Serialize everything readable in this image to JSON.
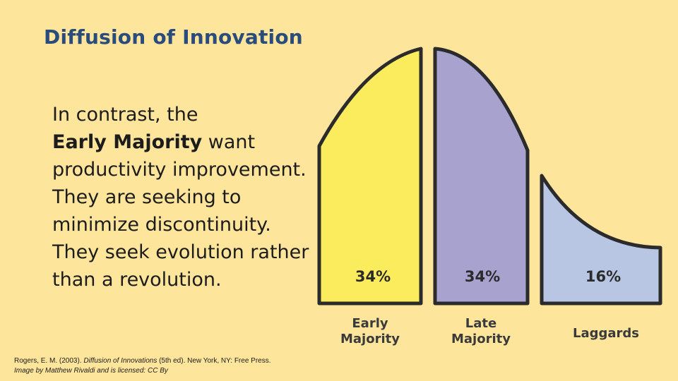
{
  "slide": {
    "title": "Diffusion of Innovation",
    "body": {
      "line1": "In contrast, the",
      "bold": "Early Majority",
      "line2_rest": " want",
      "line3": "productivity improvement.",
      "line4": "They are seeking to",
      "line5": "minimize discontinuity.",
      "line6": "They seek evolution rather",
      "line7": "than a revolution."
    },
    "citation": {
      "author": "Rogers, E. M. (2003). ",
      "book": "Diffusion of Innovations",
      "details": " (5th ed). New York, NY: Free Press.",
      "image_credit": "Image by Matthew Rivaldi and is licensed:  CC By"
    }
  },
  "chart_data": {
    "type": "area",
    "segments": [
      {
        "name": "Early Majority",
        "label_line1": "Early",
        "label_line2": "Majority",
        "percent": "34%",
        "color": "#fbec5d"
      },
      {
        "name": "Late Majority",
        "label_line1": "Late",
        "label_line2": "Majority",
        "percent": "34%",
        "color": "#a8a2cf"
      },
      {
        "name": "Laggards",
        "label_line1": "Laggards",
        "label_line2": "",
        "percent": "16%",
        "color": "#b8c6e3"
      }
    ],
    "outline_color": "#2b2b2b"
  }
}
